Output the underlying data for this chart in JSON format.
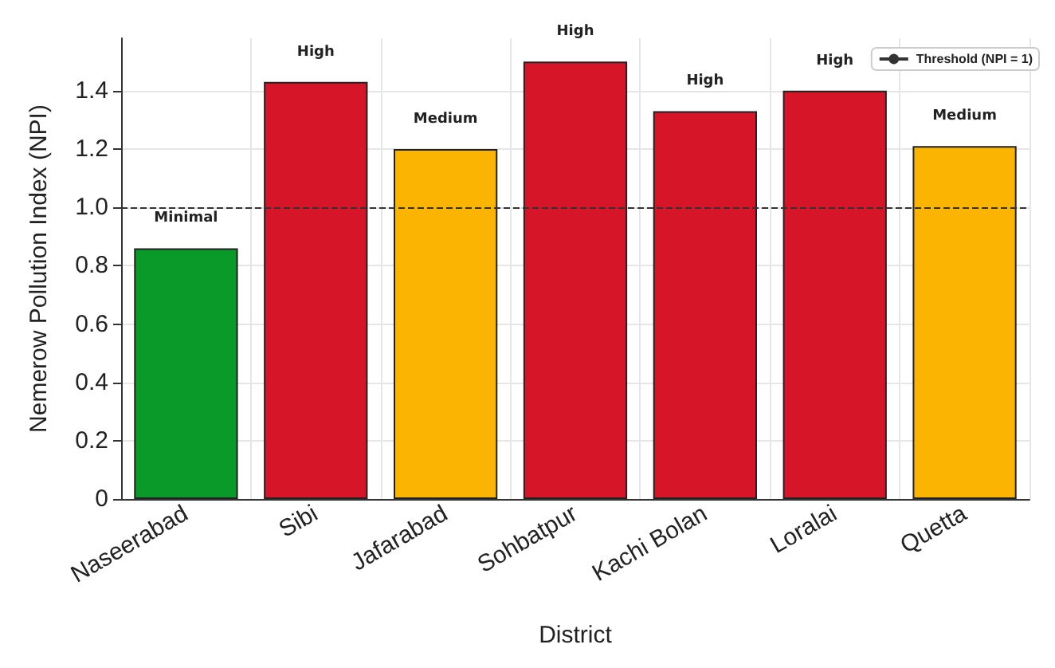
{
  "chart_data": {
    "type": "bar",
    "xlabel": "District",
    "ylabel": "Nemerow Pollution Index (NPI)",
    "categories": [
      "Naseerabad",
      "Sibi",
      "Jafarabad",
      "Sohbatpur",
      "Kachi Bolan",
      "Loralai",
      "Quetta"
    ],
    "values": [
      0.86,
      1.43,
      1.2,
      1.5,
      1.33,
      1.4,
      1.21
    ],
    "colors": [
      "#0a9a2a",
      "#d71528",
      "#fbb402",
      "#d71528",
      "#d71528",
      "#d71528",
      "#fbb402"
    ],
    "value_labels": [
      "Minimal",
      "High",
      "Medium",
      "High",
      "High",
      "High",
      "Medium"
    ],
    "ylim": [
      0,
      1.58
    ],
    "yticks": [
      0,
      0.2,
      0.4,
      0.6,
      0.8,
      {
        "value": 1,
        "label": "1.0"
      },
      1.2,
      1.4
    ],
    "ref_lines": [
      {
        "axis": "y",
        "value": 1,
        "label": "Threshold (NPI = 1)",
        "color": "#333333",
        "line_style": "dashed"
      }
    ],
    "grid": true,
    "legend": "top right"
  }
}
